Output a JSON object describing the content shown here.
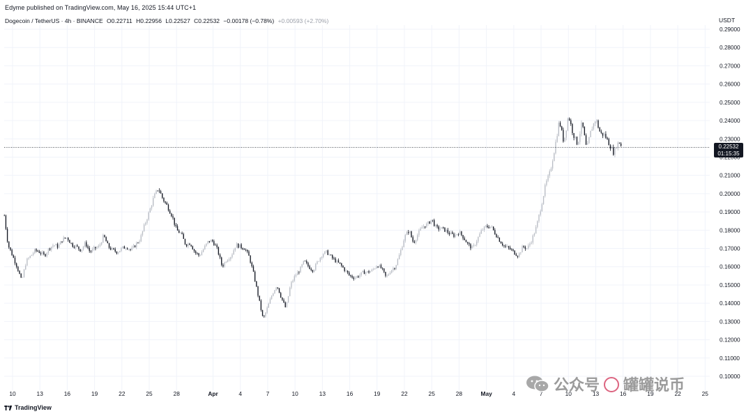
{
  "header": {
    "published_line": "Edyme published on TradingView.com, May 16, 2025 15:44 UTC+1"
  },
  "legend": {
    "symbol": "Dogecoin / TetherUS · 4h · BINANCE",
    "open": "O0.22711",
    "high": "H0.22956",
    "low": "L0.22527",
    "close": "C0.22532",
    "change": "−0.00178 (−0.78%)",
    "change_secondary": "+0.00593 (+2.70%)"
  },
  "price_scale": {
    "currency": "USDT",
    "current_price": "0.22532",
    "countdown": "01:15:35"
  },
  "footer": {
    "logo_text": "TradingView"
  },
  "watermark": {
    "text": "公众号",
    "name": "罐罐说币"
  },
  "colors": {
    "background": "#ffffff",
    "grid": "#f0f3fa",
    "candle_up": "#b8bcc4",
    "candle_down": "#131722",
    "text": "#131722",
    "price_line": "#131722"
  },
  "chart_data": {
    "type": "candlestick",
    "title": "Dogecoin / TetherUS · 4h · BINANCE",
    "xlabel": "",
    "ylabel": "USDT",
    "ylim": [
      0.095,
      0.292
    ],
    "y_ticks": [
      0.1,
      0.11,
      0.12,
      0.13,
      0.14,
      0.15,
      0.16,
      0.17,
      0.18,
      0.19,
      0.2,
      0.21,
      0.22,
      0.23,
      0.24,
      0.25,
      0.26,
      0.27,
      0.28,
      0.29
    ],
    "y_tick_labels": [
      "0.10000",
      "0.11000",
      "0.12000",
      "0.13000",
      "0.14000",
      "0.15000",
      "0.16000",
      "0.17000",
      "0.18000",
      "0.19000",
      "0.20000",
      "0.21000",
      "0.22000",
      "0.23000",
      "0.24000",
      "0.25000",
      "0.26000",
      "0.27000",
      "0.28000",
      "0.29000"
    ],
    "x_ticks": [
      {
        "label": "10",
        "day": 10
      },
      {
        "label": "13",
        "day": 13
      },
      {
        "label": "16",
        "day": 16
      },
      {
        "label": "19",
        "day": 19
      },
      {
        "label": "22",
        "day": 22
      },
      {
        "label": "25",
        "day": 25
      },
      {
        "label": "28",
        "day": 28
      },
      {
        "label": "Apr",
        "day": 32
      },
      {
        "label": "4",
        "day": 35
      },
      {
        "label": "7",
        "day": 38
      },
      {
        "label": "10",
        "day": 41
      },
      {
        "label": "13",
        "day": 44
      },
      {
        "label": "16",
        "day": 47
      },
      {
        "label": "19",
        "day": 50
      },
      {
        "label": "22",
        "day": 53
      },
      {
        "label": "25",
        "day": 56
      },
      {
        "label": "28",
        "day": 59
      },
      {
        "label": "May",
        "day": 62
      },
      {
        "label": "4",
        "day": 65
      },
      {
        "label": "7",
        "day": 68
      },
      {
        "label": "10",
        "day": 71
      },
      {
        "label": "13",
        "day": 74
      },
      {
        "label": "16",
        "day": 77
      },
      {
        "label": "19",
        "day": 80
      },
      {
        "label": "22",
        "day": 83
      },
      {
        "label": "25",
        "day": 86
      }
    ],
    "last_price": 0.22532,
    "close_path_by_day": [
      [
        9.1,
        0.188
      ],
      [
        9.5,
        0.172
      ],
      [
        10.0,
        0.166
      ],
      [
        10.5,
        0.16
      ],
      [
        11.0,
        0.152
      ],
      [
        11.5,
        0.163
      ],
      [
        12.0,
        0.166
      ],
      [
        12.5,
        0.169
      ],
      [
        13.0,
        0.168
      ],
      [
        13.5,
        0.166
      ],
      [
        14.0,
        0.17
      ],
      [
        14.5,
        0.172
      ],
      [
        15.0,
        0.171
      ],
      [
        15.5,
        0.175
      ],
      [
        16.0,
        0.176
      ],
      [
        16.5,
        0.172
      ],
      [
        17.0,
        0.171
      ],
      [
        17.5,
        0.169
      ],
      [
        18.0,
        0.173
      ],
      [
        18.5,
        0.168
      ],
      [
        19.0,
        0.17
      ],
      [
        19.5,
        0.171
      ],
      [
        20.0,
        0.177
      ],
      [
        20.5,
        0.171
      ],
      [
        21.0,
        0.169
      ],
      [
        21.5,
        0.168
      ],
      [
        22.0,
        0.17
      ],
      [
        22.5,
        0.171
      ],
      [
        23.0,
        0.169
      ],
      [
        23.5,
        0.172
      ],
      [
        24.0,
        0.175
      ],
      [
        24.5,
        0.183
      ],
      [
        25.0,
        0.19
      ],
      [
        25.5,
        0.198
      ],
      [
        26.0,
        0.203
      ],
      [
        26.5,
        0.197
      ],
      [
        27.0,
        0.193
      ],
      [
        27.5,
        0.188
      ],
      [
        28.0,
        0.18
      ],
      [
        28.5,
        0.178
      ],
      [
        29.0,
        0.172
      ],
      [
        29.5,
        0.173
      ],
      [
        30.0,
        0.168
      ],
      [
        30.5,
        0.166
      ],
      [
        31.0,
        0.17
      ],
      [
        31.5,
        0.174
      ],
      [
        32.0,
        0.174
      ],
      [
        32.5,
        0.169
      ],
      [
        33.0,
        0.16
      ],
      [
        33.5,
        0.164
      ],
      [
        34.0,
        0.166
      ],
      [
        34.5,
        0.172
      ],
      [
        35.0,
        0.171
      ],
      [
        35.5,
        0.17
      ],
      [
        36.0,
        0.165
      ],
      [
        36.5,
        0.155
      ],
      [
        37.0,
        0.143
      ],
      [
        37.5,
        0.131
      ],
      [
        38.0,
        0.138
      ],
      [
        38.5,
        0.145
      ],
      [
        39.0,
        0.15
      ],
      [
        39.5,
        0.143
      ],
      [
        40.0,
        0.137
      ],
      [
        40.5,
        0.15
      ],
      [
        41.0,
        0.155
      ],
      [
        41.5,
        0.158
      ],
      [
        42.0,
        0.163
      ],
      [
        42.5,
        0.16
      ],
      [
        43.0,
        0.158
      ],
      [
        43.5,
        0.163
      ],
      [
        44.0,
        0.167
      ],
      [
        44.5,
        0.168
      ],
      [
        45.0,
        0.165
      ],
      [
        45.5,
        0.163
      ],
      [
        46.0,
        0.161
      ],
      [
        46.5,
        0.158
      ],
      [
        47.0,
        0.155
      ],
      [
        47.5,
        0.154
      ],
      [
        48.0,
        0.155
      ],
      [
        48.5,
        0.157
      ],
      [
        49.0,
        0.157
      ],
      [
        49.5,
        0.158
      ],
      [
        50.0,
        0.161
      ],
      [
        50.5,
        0.159
      ],
      [
        51.0,
        0.154
      ],
      [
        51.5,
        0.158
      ],
      [
        52.0,
        0.16
      ],
      [
        52.5,
        0.167
      ],
      [
        53.0,
        0.176
      ],
      [
        53.5,
        0.18
      ],
      [
        54.0,
        0.173
      ],
      [
        54.5,
        0.178
      ],
      [
        55.0,
        0.182
      ],
      [
        55.5,
        0.183
      ],
      [
        56.0,
        0.186
      ],
      [
        56.5,
        0.181
      ],
      [
        57.0,
        0.181
      ],
      [
        57.5,
        0.18
      ],
      [
        58.0,
        0.178
      ],
      [
        58.5,
        0.177
      ],
      [
        59.0,
        0.179
      ],
      [
        59.5,
        0.176
      ],
      [
        60.0,
        0.172
      ],
      [
        60.5,
        0.17
      ],
      [
        61.0,
        0.175
      ],
      [
        61.5,
        0.18
      ],
      [
        62.0,
        0.182
      ],
      [
        62.5,
        0.182
      ],
      [
        63.0,
        0.178
      ],
      [
        63.5,
        0.174
      ],
      [
        64.0,
        0.171
      ],
      [
        64.5,
        0.17
      ],
      [
        65.0,
        0.168
      ],
      [
        65.5,
        0.166
      ],
      [
        66.0,
        0.171
      ],
      [
        66.5,
        0.17
      ],
      [
        67.0,
        0.175
      ],
      [
        67.5,
        0.182
      ],
      [
        68.0,
        0.193
      ],
      [
        68.5,
        0.205
      ],
      [
        69.0,
        0.212
      ],
      [
        69.5,
        0.225
      ],
      [
        70.0,
        0.24
      ],
      [
        70.5,
        0.228
      ],
      [
        71.0,
        0.243
      ],
      [
        71.5,
        0.233
      ],
      [
        72.0,
        0.227
      ],
      [
        72.5,
        0.239
      ],
      [
        73.0,
        0.224
      ],
      [
        73.5,
        0.235
      ],
      [
        74.0,
        0.241
      ],
      [
        74.5,
        0.233
      ],
      [
        75.0,
        0.232
      ],
      [
        75.5,
        0.227
      ],
      [
        76.0,
        0.222
      ],
      [
        76.3,
        0.227
      ],
      [
        76.6,
        0.228
      ],
      [
        76.9,
        0.2253
      ]
    ]
  }
}
